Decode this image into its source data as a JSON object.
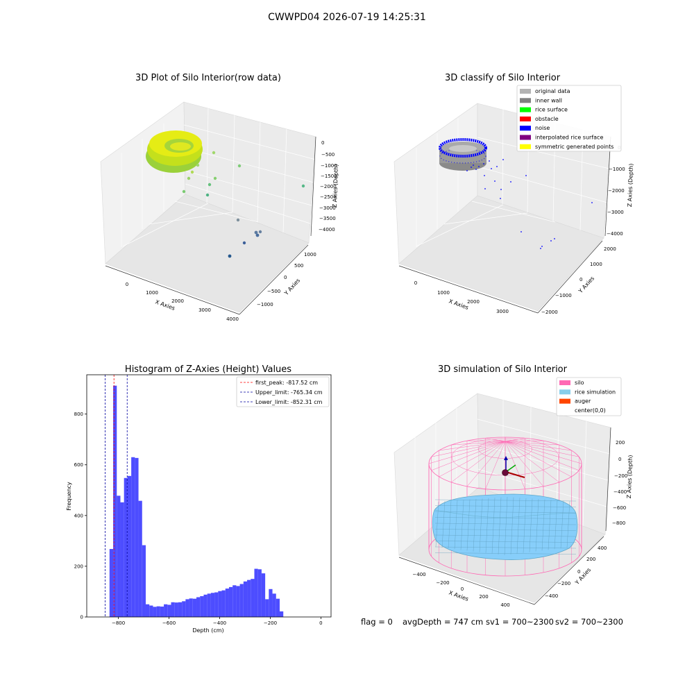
{
  "suptitle": "CWWPD04 2026-07-19 14:25:31",
  "colors": {
    "hist_bar": "#4d4dff",
    "first_peak": "#ff0000",
    "limits": "#0000a0",
    "row_data_ring": "#c4e01c",
    "noise": "#0000ff",
    "inner_wall": "#888888",
    "silo_wire": "#ff69b4",
    "rice_sim": "#87cefa"
  },
  "panels": {
    "p1": {
      "title": "3D Plot of Silo Interior(row data)",
      "xlabel": "X Axies",
      "ylabel": "Y Axies",
      "zlabel": "Z Axies (Depth)",
      "xticks": [
        "0",
        "1000",
        "2000",
        "3000",
        "4000"
      ],
      "yticks": [
        "1000",
        "500",
        "0",
        "−500",
        "−1000"
      ],
      "zticks": [
        "0",
        "−500",
        "−1000",
        "−1500",
        "−2000",
        "−2500",
        "−3000",
        "−3500",
        "−4000"
      ]
    },
    "p2": {
      "title": "3D classify of Silo Interior",
      "xlabel": "X Axies",
      "ylabel": "Y Axies",
      "zlabel": "Z Axies (Depth)",
      "xticks": [
        "0",
        "1000",
        "2000",
        "3000"
      ],
      "yticks": [
        "2000",
        "1000",
        "0",
        "−1000",
        "−2000"
      ],
      "zticks": [
        "0",
        "−1000",
        "−2000",
        "−3000",
        "−4000"
      ],
      "legend": [
        {
          "label": "original data",
          "color": "#b3b3b3"
        },
        {
          "label": "inner wall",
          "color": "#808080"
        },
        {
          "label": "rice surface",
          "color": "#00ff00"
        },
        {
          "label": "obstacle",
          "color": "#ff0000"
        },
        {
          "label": "noise",
          "color": "#0000ff"
        },
        {
          "label": "interpolated rice surface",
          "color": "#800080"
        },
        {
          "label": "symmetric generated points",
          "color": "#ffff00"
        }
      ]
    },
    "p4": {
      "title": "3D simulation of Silo Interior",
      "xlabel": "X Axies",
      "ylabel": "Y Axies",
      "zlabel": "Z Axies (Depth)",
      "xticks": [
        "−400",
        "−200",
        "0",
        "200",
        "400"
      ],
      "yticks": [
        "400",
        "200",
        "0",
        "−200",
        "−400"
      ],
      "zticks": [
        "200",
        "0",
        "−200",
        "−400",
        "−600",
        "−800"
      ],
      "legend": [
        {
          "label": "silo",
          "color": "#ff69b4"
        },
        {
          "label": "rice simulation",
          "color": "#87ceeb"
        },
        {
          "label": "auger",
          "color": "#ff4500"
        },
        {
          "label": "center(0,0)",
          "color": ""
        }
      ]
    }
  },
  "status": {
    "flag": "flag = 0",
    "avg": "avgDepth = 747 cm",
    "sv1": "sv1 = 700~2300",
    "sv2": "sv2 = 700~2300"
  },
  "chart_data": [
    {
      "type": "bar",
      "title": "Histogram of Z-Axies (Height) Values",
      "xlabel": "Depth (cm)",
      "ylabel": "Frequency",
      "xlim": [
        -925,
        40
      ],
      "ylim": [
        0,
        955
      ],
      "xticks": [
        -800,
        -600,
        -400,
        -200,
        0
      ],
      "yticks": [
        0,
        200,
        400,
        600,
        800
      ],
      "bin_width": 14.3,
      "bin_start": -835,
      "values": [
        268,
        912,
        478,
        452,
        548,
        556,
        630,
        627,
        458,
        283,
        50,
        45,
        40,
        42,
        41,
        50,
        48,
        58,
        57,
        58,
        62,
        70,
        73,
        72,
        78,
        82,
        88,
        92,
        95,
        97,
        102,
        105,
        112,
        118,
        125,
        122,
        130,
        140,
        146,
        150,
        190,
        188,
        172,
        70,
        110,
        92,
        72,
        22
      ],
      "vlines": [
        {
          "x": -817.52,
          "label": "first_peak: -817.52 cm",
          "style": "red"
        },
        {
          "x": -765.34,
          "label": "Upper_limit: -765.34 cm",
          "style": "blue"
        },
        {
          "x": -852.31,
          "label": "Lower_limit: -852.31 cm",
          "style": "blue"
        }
      ],
      "legend": "top-right"
    },
    {
      "type": "scatter",
      "title": "3D Plot of Silo Interior(row data)",
      "xlabel": "X Axies",
      "ylabel": "Y Axies",
      "zlabel": "Z Axies (Depth)",
      "xlim": [
        -300,
        4000
      ],
      "ylim": [
        -1200,
        1200
      ],
      "zlim": [
        -4200,
        200
      ]
    },
    {
      "type": "scatter",
      "title": "3D classify of Silo Interior",
      "xlabel": "X Axies",
      "ylabel": "Y Axies",
      "zlabel": "Z Axies (Depth)",
      "xlim": [
        -300,
        3800
      ],
      "ylim": [
        -2200,
        2200
      ],
      "zlim": [
        -4200,
        200
      ]
    },
    {
      "type": "scatter",
      "title": "3D simulation of Silo Interior",
      "xlabel": "X Axies",
      "ylabel": "Y Axies",
      "zlabel": "Z Axies (Depth)",
      "xlim": [
        -550,
        550
      ],
      "ylim": [
        -550,
        550
      ],
      "zlim": [
        -900,
        350
      ]
    }
  ]
}
